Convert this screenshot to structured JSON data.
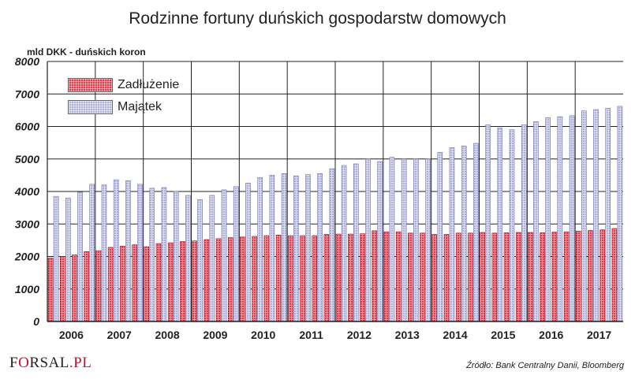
{
  "chart_data": {
    "type": "bar",
    "title": "Rodzinne fortuny duńskich gospodarstw domowych",
    "ylabel": "mld DKK - duńskich koron",
    "ylim": [
      0,
      8000
    ],
    "yticks": [
      "0",
      "1000",
      "2000",
      "3000",
      "4000",
      "5000",
      "6000",
      "7000",
      "8000"
    ],
    "year_labels": [
      "2006",
      "2007",
      "2008",
      "2009",
      "2010",
      "2011",
      "2012",
      "2013",
      "2014",
      "2015",
      "2016",
      "2017"
    ],
    "year_quarter_counts": [
      4,
      4,
      4,
      4,
      4,
      4,
      4,
      4,
      4,
      4,
      4,
      4
    ],
    "series": [
      {
        "name": "Zadłużenie",
        "color": "#e33a4b",
        "values": [
          1950,
          2000,
          2050,
          2150,
          2180,
          2280,
          2320,
          2360,
          2300,
          2400,
          2420,
          2460,
          2480,
          2520,
          2550,
          2580,
          2600,
          2620,
          2640,
          2660,
          2640,
          2640,
          2640,
          2680,
          2690,
          2690,
          2700,
          2790,
          2760,
          2760,
          2720,
          2720,
          2680,
          2680,
          2720,
          2720,
          2740,
          2720,
          2730,
          2740,
          2740,
          2730,
          2750,
          2760,
          2780,
          2800,
          2820,
          2860
        ]
      },
      {
        "name": "Majątek",
        "color": "#aeb0dc",
        "values": [
          3850,
          3800,
          3980,
          4220,
          4200,
          4360,
          4330,
          4220,
          4100,
          4120,
          4000,
          3880,
          3750,
          3880,
          4050,
          4150,
          4260,
          4430,
          4500,
          4550,
          4480,
          4520,
          4550,
          4700,
          4800,
          4850,
          5000,
          4920,
          5050,
          5000,
          5000,
          5000,
          5200,
          5350,
          5400,
          5480,
          6050,
          5950,
          5900,
          6050,
          6150,
          6270,
          6300,
          6330,
          6480,
          6520,
          6560,
          6620
        ]
      }
    ],
    "legend_position": "top-left",
    "grid": true
  },
  "footer": {
    "logo_prefix": "F",
    "logo_o": "O",
    "logo_suffix": "RSAL",
    "logo_domain": ".PL",
    "source": "Źródło: Bank Centralny Danii, Bloomberg"
  }
}
